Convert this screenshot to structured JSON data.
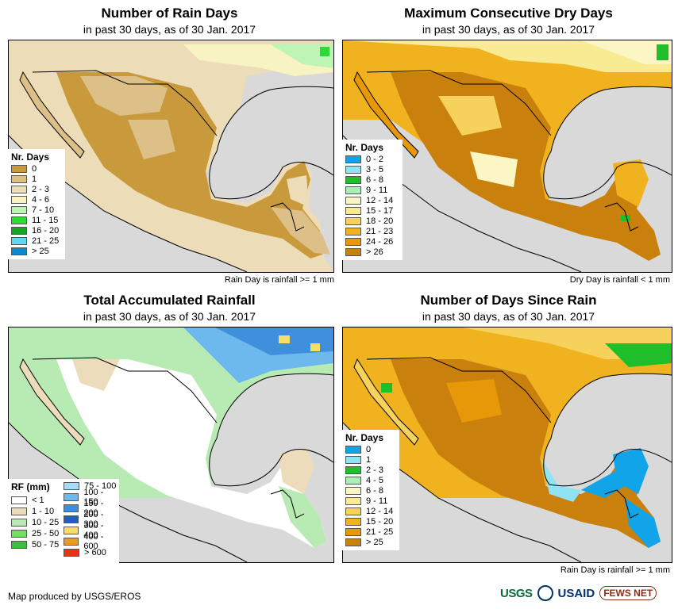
{
  "panels": [
    {
      "id": "rain-days",
      "title": "Number of Rain Days",
      "subtitle": "in past 30 days, as of 30 Jan. 2017",
      "note": "Rain Day is rainfall >= 1 mm",
      "legend_title": "Nr. Days",
      "legend": [
        {
          "label": "0",
          "color": "#c89a3c"
        },
        {
          "label": "1",
          "color": "#dcc088"
        },
        {
          "label": "2 - 3",
          "color": "#eddcb8"
        },
        {
          "label": "4 - 6",
          "color": "#f8f3c2"
        },
        {
          "label": "7 - 10",
          "color": "#bdf5b4"
        },
        {
          "label": "11 - 15",
          "color": "#2ed93a"
        },
        {
          "label": "16 - 20",
          "color": "#11a820"
        },
        {
          "label": "21 - 25",
          "color": "#5fd8f0"
        },
        {
          "label": "> 25",
          "color": "#1087c8"
        }
      ]
    },
    {
      "id": "dry-days",
      "title": "Maximum Consecutive Dry Days",
      "subtitle": "in past 30 days, as of 30 Jan. 2017",
      "note": "Dry Day is rainfall < 1 mm",
      "legend_title": "Nr. Days",
      "legend": [
        {
          "label": "0 - 2",
          "color": "#12a4e8"
        },
        {
          "label": "3 - 5",
          "color": "#8fe3f3"
        },
        {
          "label": "6 - 8",
          "color": "#1fbf2c"
        },
        {
          "label": "9 - 11",
          "color": "#aaf0b5"
        },
        {
          "label": "12 - 14",
          "color": "#fbf6c4"
        },
        {
          "label": "15 - 17",
          "color": "#f9ea94"
        },
        {
          "label": "18 - 20",
          "color": "#f6d25c"
        },
        {
          "label": "21 - 23",
          "color": "#f0b21e"
        },
        {
          "label": "24 - 26",
          "color": "#e69808"
        },
        {
          "label": "> 26",
          "color": "#c9800c"
        }
      ]
    },
    {
      "id": "total-rain",
      "title": "Total Accumulated Rainfall",
      "subtitle": "in past 30 days, as of 30 Jan. 2017",
      "note": "",
      "legend_title": "RF (mm)",
      "legend": [
        {
          "label": "< 1",
          "color": "#ffffff"
        },
        {
          "label": "1 - 10",
          "color": "#ecdcbc"
        },
        {
          "label": "10 - 25",
          "color": "#b7ebb3"
        },
        {
          "label": "25 - 50",
          "color": "#79d86a"
        },
        {
          "label": "50 - 75",
          "color": "#3ebf38"
        },
        {
          "label": "75 - 100",
          "color": "#a7dcf6"
        },
        {
          "label": "100 - 150",
          "color": "#6db8ec"
        },
        {
          "label": "150 - 200",
          "color": "#3f8fdd"
        },
        {
          "label": "200 - 300",
          "color": "#1f5fc4"
        },
        {
          "label": "300 - 400",
          "color": "#f8dd6a"
        },
        {
          "label": "400 - 600",
          "color": "#f29a17"
        },
        {
          "label": "> 600",
          "color": "#e8331a"
        }
      ]
    },
    {
      "id": "days-since",
      "title": "Number of Days Since Rain",
      "subtitle": "in past 30 days, as of 30 Jan. 2017",
      "note": "Rain Day is rainfall >= 1 mm",
      "legend_title": "Nr. Days",
      "legend": [
        {
          "label": "0",
          "color": "#12a4e8"
        },
        {
          "label": "1",
          "color": "#8fe3f3"
        },
        {
          "label": "2 - 3",
          "color": "#1fbf2c"
        },
        {
          "label": "4 - 5",
          "color": "#aaf0b5"
        },
        {
          "label": "6 - 8",
          "color": "#fbf6c4"
        },
        {
          "label": "9 - 11",
          "color": "#f9ea94"
        },
        {
          "label": "12 - 14",
          "color": "#f6d25c"
        },
        {
          "label": "15 - 20",
          "color": "#f0b21e"
        },
        {
          "label": "21 - 25",
          "color": "#e69808"
        },
        {
          "label": "> 25",
          "color": "#c9800c"
        }
      ]
    }
  ],
  "footer": {
    "credit": "Map produced by USGS/EROS",
    "logo_usgs": "USGS",
    "logo_usaid": "USAID",
    "logo_fews": "FEWS NET"
  }
}
